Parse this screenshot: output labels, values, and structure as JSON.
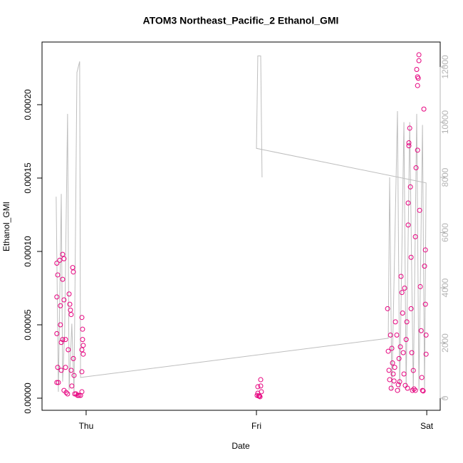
{
  "chart_data": {
    "type": "scatter",
    "title": "ATOM3 Northeast_Pacific_2 Ethanol_GMI",
    "xlabel": "Date",
    "ylabel": "Ethanol_GMI",
    "xlim": [
      -0.259,
      2.079
    ],
    "xticks": [
      {
        "value": 0,
        "label": "Thu"
      },
      {
        "value": 1,
        "label": "Fri"
      },
      {
        "value": 2,
        "label": "Sat"
      }
    ],
    "ylim": [
      -8.25e-06,
      0.0002427
    ],
    "yticks": [
      {
        "value": 0,
        "label": "0.00000"
      },
      {
        "value": 5e-05,
        "label": "0.00005"
      },
      {
        "value": 0.0001,
        "label": "0.00010"
      },
      {
        "value": 0.00015,
        "label": "0.00015"
      },
      {
        "value": 0.0002,
        "label": "0.00020"
      }
    ],
    "y2lim": [
      -439,
      12903
    ],
    "y2ticks": [
      0,
      2000,
      4000,
      6000,
      8000,
      10000,
      12000
    ],
    "series": [
      {
        "type": "scatter",
        "color": "#e6007e",
        "x": [
          -0.172,
          -0.167,
          -0.172,
          -0.172,
          -0.167,
          -0.172,
          -0.163,
          -0.155,
          -0.151,
          -0.151,
          -0.146,
          -0.146,
          -0.138,
          -0.138,
          -0.138,
          -0.13,
          -0.13,
          -0.13,
          -0.121,
          -0.121,
          -0.117,
          -0.109,
          -0.105,
          -0.1,
          -0.096,
          -0.092,
          -0.088,
          -0.088,
          -0.084,
          -0.079,
          -0.075,
          -0.075,
          -0.071,
          -0.067,
          -0.059,
          -0.05,
          -0.042,
          -0.033,
          -0.025,
          -0.025,
          -0.025,
          -0.021,
          -0.021,
          -0.017,
          -0.017,
          -0.025,
          1.008,
          1.008,
          1.017,
          1.021,
          1.025,
          1.025,
          1.029,
          1.013,
          1.004,
          1.77,
          1.774,
          1.778,
          1.782,
          1.787,
          1.791,
          1.795,
          1.799,
          1.803,
          1.808,
          1.812,
          1.816,
          1.824,
          1.828,
          1.833,
          1.837,
          1.841,
          1.845,
          1.849,
          1.854,
          1.858,
          1.862,
          1.866,
          1.87,
          1.874,
          1.879,
          1.883,
          1.887,
          1.891,
          1.891,
          1.895,
          1.895,
          1.9,
          1.904,
          1.908,
          1.908,
          1.912,
          1.916,
          1.921,
          1.925,
          1.933,
          1.937,
          1.941,
          1.946,
          1.946,
          1.95,
          1.954,
          1.954,
          1.958,
          1.962,
          1.967,
          1.971,
          1.975,
          1.979,
          1.983,
          1.987,
          1.992,
          1.992,
          1.996,
          1.996,
          1.946,
          1.933
        ],
        "values": [
          9.2e-05,
          8.4e-05,
          6.9e-05,
          4.4e-05,
          2.1e-05,
          1.07e-05,
          1.07e-05,
          9.4e-05,
          6.3e-05,
          5e-05,
          3.8e-05,
          1.9e-05,
          9.8e-05,
          8.1e-05,
          4e-05,
          9.5e-05,
          6.7e-05,
          5.3e-06,
          4e-05,
          2.1e-05,
          3.9e-06,
          2.9e-06,
          3.3e-05,
          7.1e-05,
          6.4e-05,
          6e-05,
          5.7e-05,
          1.9e-05,
          8.3e-06,
          8.9e-05,
          8.6e-05,
          2.7e-05,
          1.55e-05,
          2.9e-06,
          2.9e-06,
          1.9e-06,
          1.9e-06,
          1.9e-06,
          4.4e-06,
          1.8e-05,
          5.5e-05,
          4.7e-05,
          4e-05,
          3.6e-05,
          3e-05,
          3.3e-05,
          7.8e-06,
          3.4e-06,
          1.5e-06,
          1e-06,
          1.26e-05,
          8.3e-06,
          4.4e-06,
          1.5e-06,
          1.9e-06,
          6.1e-05,
          3.2e-05,
          1.9e-05,
          1.26e-05,
          4.3e-05,
          6.8e-06,
          3.4e-05,
          2.4e-05,
          1.65e-05,
          1.17e-05,
          2.1e-05,
          5.2e-05,
          4.3e-05,
          5.3e-06,
          9.2e-06,
          2.7e-05,
          1.12e-05,
          3.5e-05,
          8.3e-05,
          7.2e-05,
          5.8e-05,
          3.1e-05,
          1.65e-05,
          7.5e-05,
          8.7e-06,
          4e-05,
          5.2e-05,
          6.8e-06,
          0.000118,
          0.000133,
          0.000172,
          0.000174,
          0.000184,
          0.000144,
          9.6e-05,
          6.1e-05,
          3.1e-05,
          5.3e-06,
          1.89e-05,
          6.3e-06,
          5.3e-06,
          0.000157,
          0.000224,
          0.000219,
          0.000213,
          0.000218,
          0.000234,
          0.00023,
          0.000128,
          7.6e-05,
          4.6e-05,
          1.41e-05,
          5.3e-06,
          4.9e-06,
          0.000197,
          9e-05,
          0.000101,
          6.4e-05,
          4.3e-05,
          3e-05,
          0.000169,
          0.00011
        ]
      },
      {
        "type": "line",
        "axis": "y2",
        "color": "#bebebe",
        "x": [
          -0.176,
          -0.163,
          -0.146,
          -0.138,
          -0.126,
          -0.109,
          -0.1,
          -0.084,
          -0.071,
          -0.054,
          -0.038,
          -0.033,
          1.774,
          1.782,
          1.795,
          1.828,
          1.841,
          1.866,
          1.879,
          1.9,
          1.921,
          1.941,
          1.954,
          1.975,
          1.987,
          1.996,
          1.0,
          1.008,
          1.025,
          1.033
        ],
        "values": [
          7300,
          230,
          7400,
          600,
          2400,
          10300,
          300,
          2700,
          230,
          11800,
          12200,
          750,
          2170,
          8000,
          300,
          10400,
          230,
          10000,
          350,
          10000,
          230,
          10300,
          300,
          9900,
          230,
          7800,
          9050,
          12400,
          12400,
          8000
        ]
      }
    ]
  }
}
